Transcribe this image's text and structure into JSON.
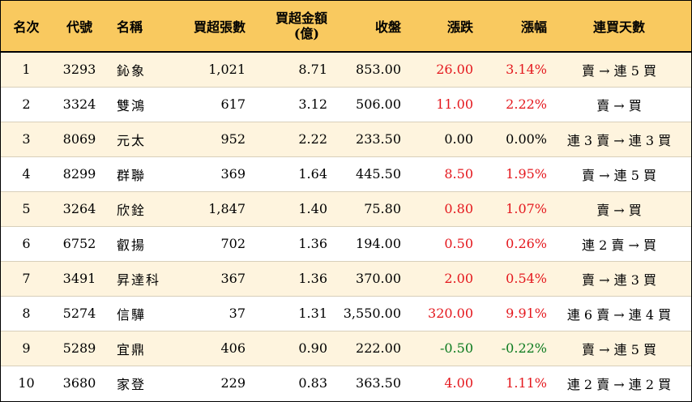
{
  "headers": {
    "rank": "名次",
    "code": "代號",
    "name": "名稱",
    "net_buy_lots": "買超張數",
    "net_buy_amount_line1": "買超金額",
    "net_buy_amount_line2": "(億)",
    "close": "收盤",
    "change": "漲跌",
    "change_pct": "漲幅",
    "consecutive_days": "連買天數"
  },
  "rows": [
    {
      "rank": "1",
      "code": "3293",
      "name": "鈊象",
      "lots": "1,021",
      "amount": "8.71",
      "close": "853.00",
      "change": "26.00",
      "pct": "3.14%",
      "trend": "up",
      "days": "賣 → 連 5 買"
    },
    {
      "rank": "2",
      "code": "3324",
      "name": "雙鴻",
      "lots": "617",
      "amount": "3.12",
      "close": "506.00",
      "change": "11.00",
      "pct": "2.22%",
      "trend": "up",
      "days": "賣 → 買"
    },
    {
      "rank": "3",
      "code": "8069",
      "name": "元太",
      "lots": "952",
      "amount": "2.22",
      "close": "233.50",
      "change": "0.00",
      "pct": "0.00%",
      "trend": "flat",
      "days": "連 3 賣 → 連 3 買"
    },
    {
      "rank": "4",
      "code": "8299",
      "name": "群聯",
      "lots": "369",
      "amount": "1.64",
      "close": "445.50",
      "change": "8.50",
      "pct": "1.95%",
      "trend": "up",
      "days": "賣 → 連 5 買"
    },
    {
      "rank": "5",
      "code": "3264",
      "name": "欣銓",
      "lots": "1,847",
      "amount": "1.40",
      "close": "75.80",
      "change": "0.80",
      "pct": "1.07%",
      "trend": "up",
      "days": "賣 → 買"
    },
    {
      "rank": "6",
      "code": "6752",
      "name": "叡揚",
      "lots": "702",
      "amount": "1.36",
      "close": "194.00",
      "change": "0.50",
      "pct": "0.26%",
      "trend": "up",
      "days": "連 2 賣 → 買"
    },
    {
      "rank": "7",
      "code": "3491",
      "name": "昇達科",
      "lots": "367",
      "amount": "1.36",
      "close": "370.00",
      "change": "2.00",
      "pct": "0.54%",
      "trend": "up",
      "days": "賣 → 連 3 買"
    },
    {
      "rank": "8",
      "code": "5274",
      "name": "信驊",
      "lots": "37",
      "amount": "1.31",
      "close": "3,550.00",
      "change": "320.00",
      "pct": "9.91%",
      "trend": "up",
      "days": "連 6 賣 → 連 4 買"
    },
    {
      "rank": "9",
      "code": "5289",
      "name": "宜鼎",
      "lots": "406",
      "amount": "0.90",
      "close": "222.00",
      "change": "-0.50",
      "pct": "-0.22%",
      "trend": "down",
      "days": "賣 → 連 5 買"
    },
    {
      "rank": "10",
      "code": "3680",
      "name": "家登",
      "lots": "229",
      "amount": "0.83",
      "close": "363.50",
      "change": "4.00",
      "pct": "1.11%",
      "trend": "up",
      "days": "連 2 賣 → 連 2 買"
    }
  ],
  "colors": {
    "header_bg": "#F9C95F",
    "odd_row_bg": "#FEF4DE",
    "up": "#E4171D",
    "down": "#0B7A1E"
  }
}
